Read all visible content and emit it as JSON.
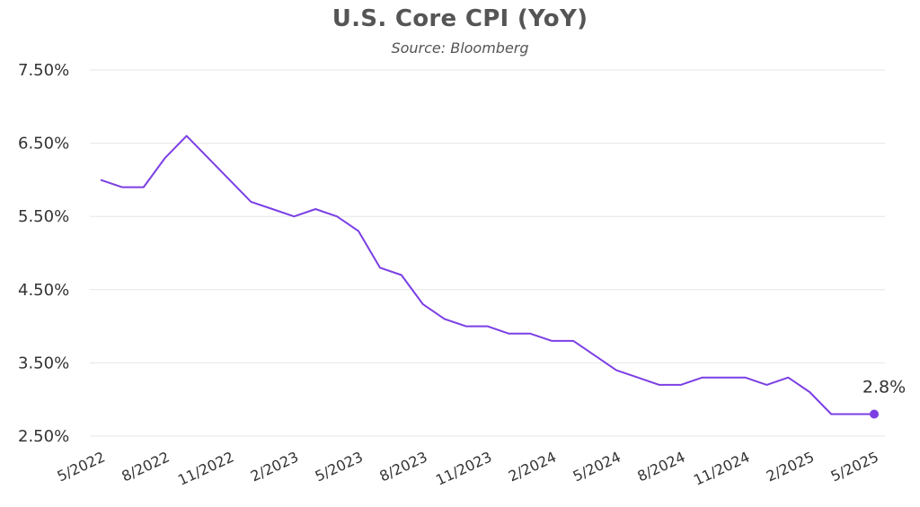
{
  "chart_data": {
    "type": "line",
    "title": "U.S. Core CPI (YoY)",
    "subtitle": "Source: Bloomberg",
    "xlabel": "",
    "ylabel": "",
    "ylim": [
      2.5,
      7.5
    ],
    "yticks": [
      "7.50%",
      "6.50%",
      "5.50%",
      "4.50%",
      "3.50%",
      "2.50%"
    ],
    "ytick_values": [
      7.5,
      6.5,
      5.5,
      4.5,
      3.5,
      2.5
    ],
    "xticks": [
      "5/2022",
      "8/2022",
      "11/2022",
      "2/2023",
      "5/2023",
      "8/2023",
      "11/2023",
      "2/2024",
      "5/2024",
      "8/2024",
      "11/2024",
      "2/2025",
      "5/2025"
    ],
    "grid": true,
    "line_color": "#7b3fe4",
    "series": [
      {
        "name": "",
        "x": [
          "5/2022",
          "6/2022",
          "7/2022",
          "8/2022",
          "9/2022",
          "10/2022",
          "11/2022",
          "12/2022",
          "1/2023",
          "2/2023",
          "3/2023",
          "4/2023",
          "5/2023",
          "6/2023",
          "7/2023",
          "8/2023",
          "9/2023",
          "10/2023",
          "11/2023",
          "12/2023",
          "1/2024",
          "2/2024",
          "3/2024",
          "4/2024",
          "5/2024",
          "6/2024",
          "7/2024",
          "8/2024",
          "9/2024",
          "10/2024",
          "11/2024",
          "12/2024",
          "1/2025",
          "2/2025",
          "3/2025",
          "4/2025",
          "5/2025"
        ],
        "values": [
          6.0,
          5.9,
          5.9,
          6.3,
          6.6,
          6.3,
          6.0,
          5.7,
          5.6,
          5.5,
          5.6,
          5.5,
          5.3,
          4.8,
          4.7,
          4.3,
          4.1,
          4.0,
          4.0,
          3.9,
          3.9,
          3.8,
          3.8,
          3.6,
          3.4,
          3.3,
          3.2,
          3.2,
          3.3,
          3.3,
          3.3,
          3.2,
          3.3,
          3.1,
          2.8,
          2.8,
          2.8
        ]
      }
    ],
    "annotation": {
      "text": "2.8%",
      "x": "5/2025",
      "y": 2.8
    }
  }
}
